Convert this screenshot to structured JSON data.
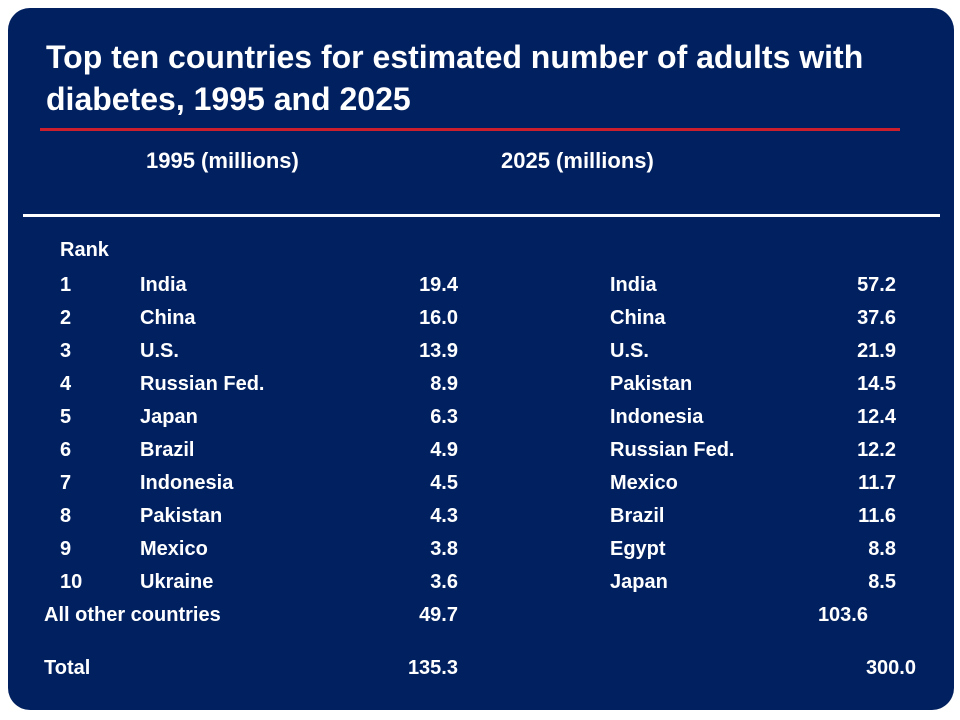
{
  "title": "Top ten countries for estimated number of adults with diabetes, 1995 and 2025",
  "headers": {
    "col1995": "1995 (millions)",
    "col2025": "2025 (millions)",
    "rank": "Rank"
  },
  "rows": [
    {
      "rank": "1",
      "c1995": "India",
      "v1995": "19.4",
      "c2025": "India",
      "v2025": "57.2"
    },
    {
      "rank": "2",
      "c1995": "China",
      "v1995": "16.0",
      "c2025": "China",
      "v2025": "37.6"
    },
    {
      "rank": "3",
      "c1995": "U.S.",
      "v1995": "13.9",
      "c2025": "U.S.",
      "v2025": "21.9"
    },
    {
      "rank": "4",
      "c1995": "Russian Fed.",
      "v1995": "8.9",
      "c2025": "Pakistan",
      "v2025": "14.5"
    },
    {
      "rank": "5",
      "c1995": "Japan",
      "v1995": "6.3",
      "c2025": "Indonesia",
      "v2025": "12.4"
    },
    {
      "rank": "6",
      "c1995": "Brazil",
      "v1995": "4.9",
      "c2025": "Russian Fed.",
      "v2025": "12.2"
    },
    {
      "rank": "7",
      "c1995": "Indonesia",
      "v1995": "4.5",
      "c2025": "Mexico",
      "v2025": "11.7"
    },
    {
      "rank": "8",
      "c1995": "Pakistan",
      "v1995": "4.3",
      "c2025": "Brazil",
      "v2025": "11.6"
    },
    {
      "rank": "9",
      "c1995": "Mexico",
      "v1995": "3.8",
      "c2025": "Egypt",
      "v2025": "8.8"
    },
    {
      "rank": "10",
      "c1995": "Ukraine",
      "v1995": "3.6",
      "c2025": "Japan",
      "v2025": "8.5"
    }
  ],
  "other": {
    "label": "All other countries",
    "v1995": "49.7",
    "v2025": "103.6"
  },
  "total": {
    "label": "Total",
    "v1995": "135.3",
    "v2025": "300.0"
  },
  "colors": {
    "background": "#002060",
    "accent_rule": "#cc1f2e",
    "text": "#ffffff"
  }
}
